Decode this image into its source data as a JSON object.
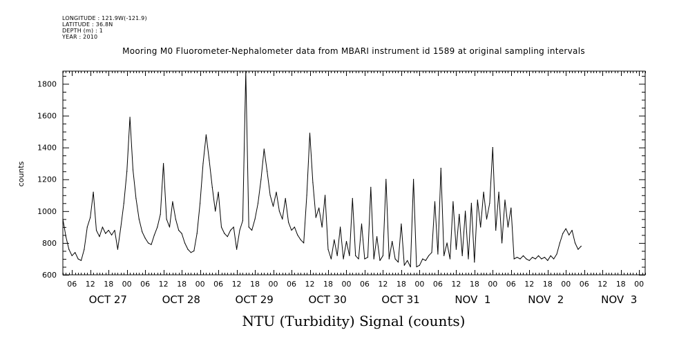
{
  "header": {
    "longitude": "LONGITUDE : 121.9W(-121.9)",
    "latitude": "LATITUDE : 36.8N",
    "depth": "DEPTH (m) : 1",
    "year": "YEAR : 2010"
  },
  "chart_data": {
    "type": "line",
    "title": "Mooring M0 Fluorometer-Nephalometer data from MBARI instrument id 1589 at original sampling intervals",
    "subtitle": "NTU (Turbidity) Signal (counts)",
    "ylabel": "counts",
    "xlabel": "",
    "ylim": [
      600,
      1880
    ],
    "yticks": [
      600,
      800,
      1000,
      1200,
      1400,
      1600,
      1800
    ],
    "xlim": [
      "2010-10-26T03:00",
      "2010-11-03T02:00"
    ],
    "hour_tick_labels": [
      "06",
      "12",
      "18",
      "00",
      "06",
      "12",
      "18",
      "00",
      "06",
      "12",
      "18",
      "00",
      "06",
      "12",
      "18",
      "00",
      "06",
      "12",
      "18",
      "00",
      "06",
      "12",
      "18",
      "00",
      "06",
      "12",
      "18",
      "00",
      "06",
      "12",
      "18",
      "00"
    ],
    "day_labels": [
      {
        "label": "OCT 27",
        "time": "2010-10-27T00:00"
      },
      {
        "label": "OCT 28",
        "time": "2010-10-28T00:00"
      },
      {
        "label": "OCT 29",
        "time": "2010-10-29T00:00"
      },
      {
        "label": "OCT 30",
        "time": "2010-10-30T00:00"
      },
      {
        "label": "OCT 31",
        "time": "2010-10-31T00:00"
      },
      {
        "label": "NOV  1",
        "time": "2010-11-01T00:00"
      },
      {
        "label": "NOV  2",
        "time": "2010-11-02T00:00"
      },
      {
        "label": "NOV  3",
        "time": "2010-11-03T00:00"
      }
    ],
    "series": [
      {
        "values": [
          [
            "2010-10-26T03:00",
            950
          ],
          [
            "2010-10-26T04:00",
            840
          ],
          [
            "2010-10-26T05:00",
            760
          ],
          [
            "2010-10-26T06:00",
            720
          ],
          [
            "2010-10-26T07:00",
            740
          ],
          [
            "2010-10-26T08:00",
            700
          ],
          [
            "2010-10-26T09:00",
            690
          ],
          [
            "2010-10-26T10:00",
            760
          ],
          [
            "2010-10-26T11:00",
            900
          ],
          [
            "2010-10-26T12:00",
            960
          ],
          [
            "2010-10-26T13:00",
            1120
          ],
          [
            "2010-10-26T14:00",
            880
          ],
          [
            "2010-10-26T15:00",
            840
          ],
          [
            "2010-10-26T16:00",
            900
          ],
          [
            "2010-10-26T17:00",
            860
          ],
          [
            "2010-10-26T18:00",
            880
          ],
          [
            "2010-10-26T19:00",
            850
          ],
          [
            "2010-10-26T20:00",
            880
          ],
          [
            "2010-10-26T21:00",
            760
          ],
          [
            "2010-10-26T22:00",
            900
          ],
          [
            "2010-10-26T23:00",
            1050
          ],
          [
            "2010-10-27T00:00",
            1250
          ],
          [
            "2010-10-27T01:00",
            1590
          ],
          [
            "2010-10-27T02:00",
            1260
          ],
          [
            "2010-10-27T03:00",
            1080
          ],
          [
            "2010-10-27T04:00",
            950
          ],
          [
            "2010-10-27T05:00",
            870
          ],
          [
            "2010-10-27T06:00",
            830
          ],
          [
            "2010-10-27T07:00",
            800
          ],
          [
            "2010-10-27T08:00",
            790
          ],
          [
            "2010-10-27T09:00",
            850
          ],
          [
            "2010-10-27T10:00",
            900
          ],
          [
            "2010-10-27T11:00",
            980
          ],
          [
            "2010-10-27T12:00",
            1300
          ],
          [
            "2010-10-27T13:00",
            950
          ],
          [
            "2010-10-27T14:00",
            900
          ],
          [
            "2010-10-27T15:00",
            1060
          ],
          [
            "2010-10-27T16:00",
            950
          ],
          [
            "2010-10-27T17:00",
            880
          ],
          [
            "2010-10-27T18:00",
            860
          ],
          [
            "2010-10-27T19:00",
            800
          ],
          [
            "2010-10-27T20:00",
            760
          ],
          [
            "2010-10-27T21:00",
            740
          ],
          [
            "2010-10-27T22:00",
            750
          ],
          [
            "2010-10-27T23:00",
            860
          ],
          [
            "2010-10-28T00:00",
            1050
          ],
          [
            "2010-10-28T01:00",
            1300
          ],
          [
            "2010-10-28T02:00",
            1480
          ],
          [
            "2010-10-28T03:00",
            1320
          ],
          [
            "2010-10-28T04:00",
            1150
          ],
          [
            "2010-10-28T05:00",
            1000
          ],
          [
            "2010-10-28T06:00",
            1120
          ],
          [
            "2010-10-28T07:00",
            900
          ],
          [
            "2010-10-28T08:00",
            860
          ],
          [
            "2010-10-28T09:00",
            840
          ],
          [
            "2010-10-28T10:00",
            880
          ],
          [
            "2010-10-28T11:00",
            900
          ],
          [
            "2010-10-28T12:00",
            760
          ],
          [
            "2010-10-28T13:00",
            880
          ],
          [
            "2010-10-28T14:00",
            940
          ],
          [
            "2010-10-28T15:00",
            1880
          ],
          [
            "2010-10-28T16:00",
            900
          ],
          [
            "2010-10-28T17:00",
            880
          ],
          [
            "2010-10-28T18:00",
            950
          ],
          [
            "2010-10-28T19:00",
            1050
          ],
          [
            "2010-10-28T20:00",
            1200
          ],
          [
            "2010-10-28T21:00",
            1390
          ],
          [
            "2010-10-28T22:00",
            1250
          ],
          [
            "2010-10-28T23:00",
            1100
          ],
          [
            "2010-10-29T00:00",
            1030
          ],
          [
            "2010-10-29T01:00",
            1120
          ],
          [
            "2010-10-29T02:00",
            1000
          ],
          [
            "2010-10-29T03:00",
            950
          ],
          [
            "2010-10-29T04:00",
            1080
          ],
          [
            "2010-10-29T05:00",
            930
          ],
          [
            "2010-10-29T06:00",
            880
          ],
          [
            "2010-10-29T07:00",
            900
          ],
          [
            "2010-10-29T08:00",
            850
          ],
          [
            "2010-10-29T09:00",
            820
          ],
          [
            "2010-10-29T10:00",
            800
          ],
          [
            "2010-10-29T11:00",
            1100
          ],
          [
            "2010-10-29T12:00",
            1490
          ],
          [
            "2010-10-29T13:00",
            1180
          ],
          [
            "2010-10-29T14:00",
            960
          ],
          [
            "2010-10-29T15:00",
            1020
          ],
          [
            "2010-10-29T16:00",
            900
          ],
          [
            "2010-10-29T17:00",
            1100
          ],
          [
            "2010-10-29T18:00",
            760
          ],
          [
            "2010-10-29T19:00",
            700
          ],
          [
            "2010-10-29T20:00",
            820
          ],
          [
            "2010-10-29T21:00",
            720
          ],
          [
            "2010-10-29T22:00",
            900
          ],
          [
            "2010-10-29T23:00",
            700
          ],
          [
            "2010-10-30T00:00",
            810
          ],
          [
            "2010-10-30T01:00",
            720
          ],
          [
            "2010-10-30T02:00",
            1080
          ],
          [
            "2010-10-30T03:00",
            720
          ],
          [
            "2010-10-30T04:00",
            700
          ],
          [
            "2010-10-30T05:00",
            920
          ],
          [
            "2010-10-30T06:00",
            700
          ],
          [
            "2010-10-30T07:00",
            710
          ],
          [
            "2010-10-30T08:00",
            1150
          ],
          [
            "2010-10-30T09:00",
            700
          ],
          [
            "2010-10-30T10:00",
            840
          ],
          [
            "2010-10-30T11:00",
            690
          ],
          [
            "2010-10-30T12:00",
            720
          ],
          [
            "2010-10-30T13:00",
            1200
          ],
          [
            "2010-10-30T14:00",
            700
          ],
          [
            "2010-10-30T15:00",
            810
          ],
          [
            "2010-10-30T16:00",
            700
          ],
          [
            "2010-10-30T17:00",
            680
          ],
          [
            "2010-10-30T18:00",
            920
          ],
          [
            "2010-10-30T19:00",
            660
          ],
          [
            "2010-10-30T20:00",
            690
          ],
          [
            "2010-10-30T21:00",
            650
          ],
          [
            "2010-10-30T22:00",
            1200
          ],
          [
            "2010-10-30T23:00",
            650
          ],
          [
            "2010-10-31T00:00",
            660
          ],
          [
            "2010-10-31T01:00",
            700
          ],
          [
            "2010-10-31T02:00",
            690
          ],
          [
            "2010-10-31T03:00",
            720
          ],
          [
            "2010-10-31T04:00",
            740
          ],
          [
            "2010-10-31T05:00",
            1060
          ],
          [
            "2010-10-31T06:00",
            730
          ],
          [
            "2010-10-31T07:00",
            1270
          ],
          [
            "2010-10-31T08:00",
            720
          ],
          [
            "2010-10-31T09:00",
            800
          ],
          [
            "2010-10-31T10:00",
            700
          ],
          [
            "2010-10-31T11:00",
            1060
          ],
          [
            "2010-10-31T12:00",
            760
          ],
          [
            "2010-10-31T13:00",
            980
          ],
          [
            "2010-10-31T14:00",
            720
          ],
          [
            "2010-10-31T15:00",
            1000
          ],
          [
            "2010-10-31T16:00",
            700
          ],
          [
            "2010-10-31T17:00",
            1050
          ],
          [
            "2010-10-31T18:00",
            680
          ],
          [
            "2010-10-31T19:00",
            1070
          ],
          [
            "2010-10-31T20:00",
            900
          ],
          [
            "2010-10-31T21:00",
            1120
          ],
          [
            "2010-10-31T22:00",
            950
          ],
          [
            "2010-10-31T23:00",
            1050
          ],
          [
            "2010-11-01T00:00",
            1400
          ],
          [
            "2010-11-01T01:00",
            880
          ],
          [
            "2010-11-01T02:00",
            1120
          ],
          [
            "2010-11-01T03:00",
            800
          ],
          [
            "2010-11-01T04:00",
            1070
          ],
          [
            "2010-11-01T05:00",
            900
          ],
          [
            "2010-11-01T06:00",
            1020
          ],
          [
            "2010-11-01T07:00",
            700
          ],
          [
            "2010-11-01T08:00",
            710
          ],
          [
            "2010-11-01T09:00",
            700
          ],
          [
            "2010-11-01T10:00",
            720
          ],
          [
            "2010-11-01T11:00",
            700
          ],
          [
            "2010-11-01T12:00",
            690
          ],
          [
            "2010-11-01T13:00",
            710
          ],
          [
            "2010-11-01T14:00",
            700
          ],
          [
            "2010-11-01T15:00",
            720
          ],
          [
            "2010-11-01T16:00",
            700
          ],
          [
            "2010-11-01T17:00",
            710
          ],
          [
            "2010-11-01T18:00",
            690
          ],
          [
            "2010-11-01T19:00",
            720
          ],
          [
            "2010-11-01T20:00",
            700
          ],
          [
            "2010-11-01T21:00",
            730
          ],
          [
            "2010-11-01T22:00",
            800
          ],
          [
            "2010-11-01T23:00",
            860
          ],
          [
            "2010-11-02T00:00",
            890
          ],
          [
            "2010-11-02T01:00",
            850
          ],
          [
            "2010-11-02T02:00",
            880
          ],
          [
            "2010-11-02T03:00",
            800
          ],
          [
            "2010-11-02T04:00",
            760
          ],
          [
            "2010-11-02T05:00",
            780
          ]
        ]
      }
    ]
  }
}
